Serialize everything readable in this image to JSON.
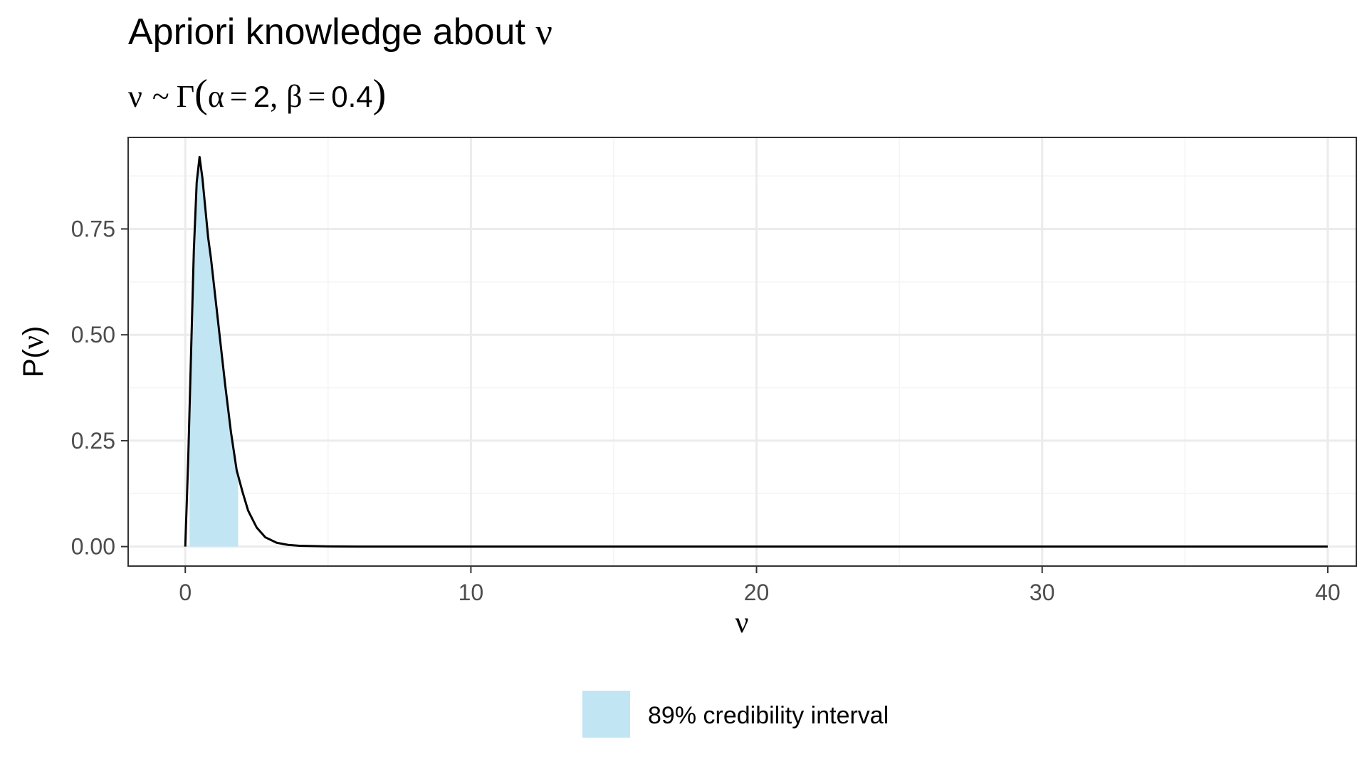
{
  "chart_data": {
    "type": "area",
    "title_text": "Apriori knowledge about ",
    "title_symbol": "ν",
    "subtitle": {
      "nu": "ν",
      "tilde": "~",
      "gamma": "Γ",
      "lparen": "(",
      "alpha": "α",
      "eq1": "=",
      "alpha_val": "2",
      "comma": ",",
      "beta": "β",
      "eq2": "=",
      "beta_val": "0.4",
      "rparen": ")"
    },
    "xlabel": "ν",
    "ylabel_prefix": "P(",
    "ylabel_symbol": "ν",
    "ylabel_suffix": ")",
    "xlim": [
      -2,
      41
    ],
    "ylim": [
      -0.046,
      0.966
    ],
    "x_ticks": [
      0,
      10,
      20,
      30,
      40
    ],
    "x_tick_labels": [
      "0",
      "10",
      "20",
      "30",
      "40"
    ],
    "y_ticks": [
      0,
      0.25,
      0.5,
      0.75
    ],
    "y_tick_labels": [
      "0.00",
      "0.25",
      "0.50",
      "0.75"
    ],
    "grid": true,
    "series": [
      {
        "x": [
          0.0,
          0.1,
          0.2,
          0.3,
          0.4,
          0.5,
          0.6,
          0.7,
          0.8,
          0.9,
          1.0,
          1.2,
          1.4,
          1.6,
          1.8,
          2.0,
          2.2,
          2.5,
          2.8,
          3.2,
          3.6,
          4.0,
          5.0,
          6.0,
          8.0,
          10.0,
          15.0,
          20.0,
          25.0,
          30.0,
          35.0,
          40.0
        ],
        "y": [
          0.0,
          0.2,
          0.45,
          0.7,
          0.86,
          0.92,
          0.87,
          0.8,
          0.73,
          0.68,
          0.62,
          0.5,
          0.38,
          0.27,
          0.18,
          0.13,
          0.085,
          0.045,
          0.022,
          0.009,
          0.004,
          0.002,
          0.0005,
          0.0001,
          0.0,
          0.0,
          0.0,
          0.0,
          0.0,
          0.0,
          0.0,
          0.0
        ]
      }
    ],
    "credibility_interval": [
      0.15,
      1.85
    ],
    "legend": {
      "position": "bottom",
      "label": "89% credibility interval",
      "color": "#c2e5f4"
    },
    "colors": {
      "fill": "#c2e5f4",
      "line": "#000000",
      "grid_major": "#ebebeb",
      "grid_minor": "#f4f4f4",
      "panel_border": "#333333",
      "tick_text": "#4d4d4d"
    }
  }
}
